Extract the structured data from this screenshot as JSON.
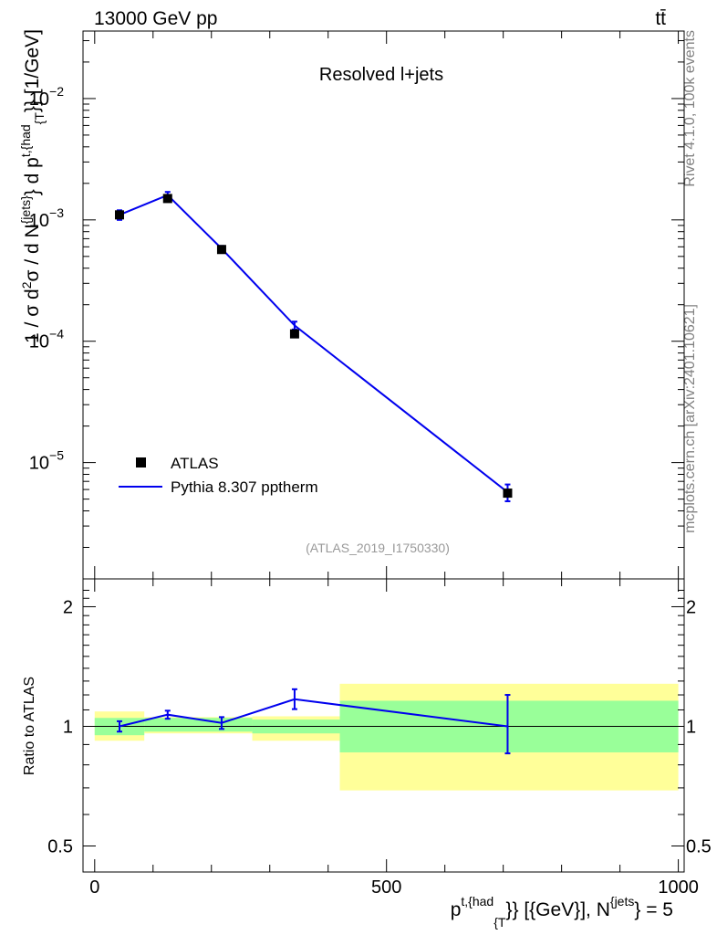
{
  "header": {
    "left": "13000 GeV pp",
    "right": "tt̄"
  },
  "side_labels": {
    "top": "Rivet 4.1.0,  100k events",
    "bottom": "mcplots.cern.ch [arXiv:2401.10621]"
  },
  "colors": {
    "mc": "#0000ee",
    "band_inner": "#99ff99",
    "band_outer": "#ffff99",
    "data": "#000000",
    "subtitle": "#999999"
  },
  "chart_data": [
    {
      "type": "scatter",
      "title": "Resolved l+jets",
      "analysis_id": "(ATLAS_2019_I1750330)",
      "ylabel": {
        "base": "1 / σ d",
        "sup1": "2",
        "mid1": "σ / d N",
        "sup2": "{jets}",
        "mid2": "} d p",
        "sup3": "t,{had",
        "sub3": "{T",
        "tail": "}} [1/GeV]"
      },
      "yscale": "log",
      "ylim": [
        1.1e-06,
        0.036
      ],
      "xlim": [
        -20,
        1010
      ],
      "ytick_labels": [
        {
          "value": 1e-05,
          "base": "10",
          "exp": "−5"
        },
        {
          "value": 0.0001,
          "base": "10",
          "exp": "−4"
        },
        {
          "value": 0.001,
          "base": "10",
          "exp": "−3"
        },
        {
          "value": 0.01,
          "base": "10",
          "exp": "−2"
        }
      ],
      "legend": {
        "position": "bottom-left",
        "entries": [
          "ATLAS",
          "Pythia 8.307 pptherm"
        ]
      },
      "series": [
        {
          "name": "ATLAS",
          "kind": "points",
          "x": [
            42.5,
            125,
            217.5,
            342.5,
            707.5
          ],
          "y": [
            0.0011,
            0.0015,
            0.00057,
            0.000115,
            5.6e-06
          ],
          "xerr": [
            42.5,
            40,
            52.5,
            72.5,
            292.5
          ]
        },
        {
          "name": "Pythia 8.307 pptherm",
          "kind": "line",
          "x": [
            42.5,
            125,
            217.5,
            342.5,
            707.5
          ],
          "y": [
            0.0011,
            0.0016,
            0.00058,
            0.000135,
            5.7e-06
          ],
          "yerr_low": [
            0.001,
            0.0015,
            0.00055,
            0.000125,
            4.8e-06
          ],
          "yerr_high": [
            0.0012,
            0.0017,
            0.00061,
            0.000145,
            6.6e-06
          ]
        }
      ]
    },
    {
      "type": "scatter",
      "ylabel": "Ratio to ATLAS",
      "xlabel": {
        "base": "p",
        "sup1": "t,{had",
        "sub1": "{T",
        "tail": "}} [{GeV}], N",
        "sup2": "{jets",
        "end": "} = 5"
      },
      "yscale": "log",
      "ylim": [
        0.43,
        2.35
      ],
      "xlim": [
        -20,
        1010
      ],
      "xtick_labels": [
        {
          "value": 0,
          "label": "0"
        },
        {
          "value": 500,
          "label": "500"
        },
        {
          "value": 1000,
          "label": "1000"
        }
      ],
      "ytick_labels": [
        {
          "value": 0.5,
          "label": "0.5"
        },
        {
          "value": 1,
          "label": "1"
        },
        {
          "value": 2,
          "label": "2"
        }
      ],
      "bins": [
        {
          "xlo": 0,
          "xhi": 85,
          "inner": [
            0.95,
            1.05
          ],
          "outer": [
            0.92,
            1.09
          ]
        },
        {
          "xlo": 85,
          "xhi": 270,
          "inner": [
            0.97,
            1.05
          ],
          "outer": [
            0.96,
            1.055
          ]
        },
        {
          "xlo": 270,
          "xhi": 420,
          "inner": [
            0.96,
            1.04
          ],
          "outer": [
            0.92,
            1.06
          ]
        },
        {
          "xlo": 420,
          "xhi": 1000,
          "inner": [
            0.86,
            1.16
          ],
          "outer": [
            0.69,
            1.28
          ]
        }
      ],
      "ratio": {
        "name": "Pythia 8.307 pptherm",
        "x": [
          42.5,
          125,
          217.5,
          342.5,
          707.5
        ],
        "y": [
          1.0,
          1.07,
          1.02,
          1.17,
          1.0
        ],
        "yerr_low": [
          0.97,
          1.045,
          0.985,
          1.105,
          0.855
        ],
        "yerr_high": [
          1.03,
          1.095,
          1.055,
          1.24,
          1.2
        ]
      }
    }
  ]
}
